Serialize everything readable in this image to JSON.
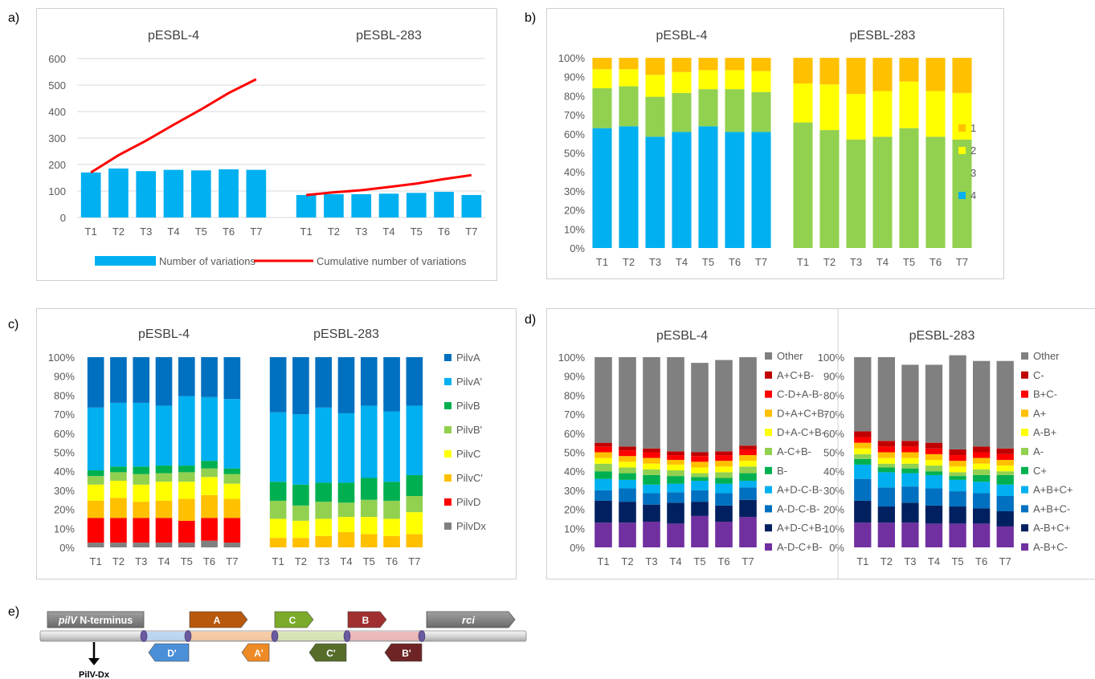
{
  "panel_labels": [
    "a)",
    "b)",
    "c)",
    "d)",
    "e)"
  ],
  "chart_data": [
    {
      "panel": "a)",
      "type": "bar",
      "groups": [
        "pESBL-4",
        "pESBL-283"
      ],
      "categories": [
        "T1",
        "T2",
        "T3",
        "T4",
        "T5",
        "T6",
        "T7"
      ],
      "ylim": [
        0,
        600
      ],
      "yticks": [
        "0",
        "100",
        "200",
        "300",
        "400",
        "500",
        "600"
      ],
      "grid": true,
      "legend_position": "bottom",
      "series": [
        {
          "name": "Number of variations",
          "kind": "bar",
          "color": "#00b0f0",
          "values": {
            "pESBL-4": [
              170,
              185,
              175,
              180,
              178,
              182,
              180
            ],
            "pESBL-283": [
              85,
              88,
              88,
              90,
              93,
              97,
              85
            ]
          }
        },
        {
          "name": "Cumulative number of variations",
          "kind": "line",
          "color": "#ff0000",
          "values": {
            "pESBL-4": [
              170,
              235,
              290,
              350,
              408,
              470,
              522
            ],
            "pESBL-283": [
              85,
              95,
              103,
              115,
              128,
              145,
              160
            ]
          }
        }
      ]
    },
    {
      "panel": "b)",
      "type": "bar",
      "stacked": "percent",
      "groups": [
        "pESBL-4",
        "pESBL-283"
      ],
      "categories": [
        "T1",
        "T2",
        "T3",
        "T4",
        "T5",
        "T6",
        "T7"
      ],
      "yticks": [
        "0%",
        "10%",
        "20%",
        "30%",
        "40%",
        "50%",
        "60%",
        "70%",
        "80%",
        "90%",
        "100%"
      ],
      "legend_position": "right",
      "series": [
        {
          "name": "4",
          "color": "#00b0f0",
          "values": {
            "pESBL-4": [
              63,
              64,
              58.5,
              61,
              64,
              61,
              61
            ],
            "pESBL-283": [
              0,
              0,
              0,
              0,
              0,
              0,
              0
            ]
          }
        },
        {
          "name": "3",
          "color": "#92d050",
          "values": {
            "pESBL-4": [
              21,
              21,
              21,
              20.5,
              19.5,
              22.5,
              21
            ],
            "pESBL-283": [
              66,
              62,
              57,
              58.5,
              63,
              58.5,
              57
            ]
          }
        },
        {
          "name": "2",
          "color": "#ffff00",
          "values": {
            "pESBL-4": [
              10,
              9,
              11.5,
              11,
              10,
              10,
              11
            ],
            "pESBL-283": [
              20.5,
              24,
              24,
              24,
              24.5,
              24,
              24.5
            ]
          }
        },
        {
          "name": "1",
          "color": "#ffc000",
          "values": {
            "pESBL-4": [
              6,
              6,
              9,
              7.5,
              6.5,
              6.5,
              7
            ],
            "pESBL-283": [
              13.5,
              14,
              19,
              17.5,
              12.5,
              17.5,
              18.5
            ]
          }
        }
      ]
    },
    {
      "panel": "c)",
      "type": "bar",
      "stacked": "percent",
      "groups": [
        "pESBL-4",
        "pESBL-283"
      ],
      "categories": [
        "T1",
        "T2",
        "T3",
        "T4",
        "T5",
        "T6",
        "T7"
      ],
      "yticks": [
        "0%",
        "10%",
        "20%",
        "30%",
        "40%",
        "50%",
        "60%",
        "70%",
        "80%",
        "90%",
        "100%"
      ],
      "legend_position": "right",
      "series": [
        {
          "name": "PilvDx",
          "color": "#808080",
          "values": {
            "pESBL-4": [
              2.5,
              2.5,
              2.5,
              2.5,
              2.5,
              3.5,
              2.5
            ],
            "pESBL-283": [
              0,
              0,
              0,
              0,
              0,
              0,
              0
            ]
          }
        },
        {
          "name": "PilvD",
          "color": "#ff0000",
          "values": {
            "pESBL-4": [
              13,
              13,
              13,
              13,
              11.5,
              12,
              13
            ],
            "pESBL-283": [
              0,
              0,
              0,
              0,
              0,
              0,
              0
            ]
          }
        },
        {
          "name": "PilvC'",
          "color": "#ffc000",
          "values": {
            "pESBL-4": [
              9,
              10.5,
              8.5,
              9,
              11.5,
              12,
              10
            ],
            "pESBL-283": [
              5,
              5,
              6,
              8,
              7,
              6,
              7
            ]
          }
        },
        {
          "name": "PilvC",
          "color": "#ffff00",
          "values": {
            "pESBL-4": [
              8.5,
              9,
              9,
              10,
              9,
              9.5,
              8
            ],
            "pESBL-283": [
              10,
              9,
              9,
              8,
              9,
              9,
              11.5
            ]
          }
        },
        {
          "name": "PilvB'",
          "color": "#92d050",
          "values": {
            "pESBL-4": [
              4.5,
              4.5,
              5.5,
              4.5,
              5,
              4.5,
              5
            ],
            "pESBL-283": [
              9.5,
              8,
              9,
              7.5,
              9,
              9.5,
              8.5
            ]
          }
        },
        {
          "name": "PilvB",
          "color": "#00b050",
          "values": {
            "pESBL-4": [
              3,
              3,
              4,
              4,
              3.5,
              4,
              3
            ],
            "pESBL-283": [
              10,
              11,
              10,
              10.5,
              11.5,
              10,
              11
            ]
          }
        },
        {
          "name": "PilvA'",
          "color": "#00b0f0",
          "values": {
            "pESBL-4": [
              33,
              33.5,
              33.5,
              31.5,
              36.5,
              33.5,
              36.5
            ],
            "pESBL-283": [
              36.5,
              37,
              39.5,
              36.5,
              38,
              37,
              36.5
            ]
          }
        },
        {
          "name": "PilvA",
          "color": "#0070c0",
          "values": {
            "pESBL-4": [
              26.5,
              24,
              24,
              25.5,
              20.5,
              21,
              22
            ],
            "pESBL-283": [
              29,
              30,
              26.5,
              29.5,
              25.5,
              28.5,
              25.5
            ]
          }
        }
      ]
    },
    {
      "panel": "d)",
      "type": "bar",
      "stacked": "percent",
      "charts": [
        {
          "title": "pESBL-4",
          "categories": [
            "T1",
            "T2",
            "T3",
            "T4",
            "T5",
            "T6",
            "T7"
          ],
          "yticks": [
            "0%",
            "10%",
            "20%",
            "30%",
            "40%",
            "50%",
            "60%",
            "70%",
            "80%",
            "90%",
            "100%"
          ],
          "legend_position": "right",
          "series": [
            {
              "name": "A-D-C+B-",
              "color": "#7030a0",
              "values": [
                13,
                13,
                13.5,
                12.5,
                16.5,
                13.5,
                16
              ]
            },
            {
              "name": "A+D-C+B-",
              "color": "#002060",
              "values": [
                11.5,
                11,
                9,
                11,
                7.5,
                8.5,
                9
              ]
            },
            {
              "name": "A-D-C-B-",
              "color": "#0070c0",
              "values": [
                5.5,
                7,
                6,
                5.5,
                6,
                6.5,
                6.5
              ]
            },
            {
              "name": "A+D-C-B-",
              "color": "#00b0f0",
              "values": [
                6,
                4.5,
                4.5,
                4.5,
                5,
                5,
                3.5
              ]
            },
            {
              "name": "B-",
              "color": "#00b050",
              "values": [
                4,
                3.5,
                5,
                4,
                2,
                3,
                4
              ]
            },
            {
              "name": "A-C+B-",
              "color": "#92d050",
              "values": [
                4,
                3,
                3,
                3,
                2,
                3,
                3.5
              ]
            },
            {
              "name": "D+A-C+B-",
              "color": "#ffff00",
              "values": [
                3,
                3,
                3,
                3,
                3,
                3,
                3
              ]
            },
            {
              "name": "D+A+C+B-",
              "color": "#ffc000",
              "values": [
                3,
                3,
                3,
                2.5,
                3,
                3,
                3
              ]
            },
            {
              "name": "C-D+A-B-",
              "color": "#ff0000",
              "values": [
                3,
                3,
                3,
                2.5,
                3,
                3,
                3
              ]
            },
            {
              "name": "A+C+B-",
              "color": "#c00000",
              "values": [
                2,
                2,
                2,
                2,
                2,
                2,
                2
              ]
            },
            {
              "name": "Other",
              "color": "#808080",
              "values": [
                45,
                47,
                48,
                49.5,
                47,
                48,
                46.5
              ]
            }
          ]
        },
        {
          "title": "pESBL-283",
          "categories": [
            "T1",
            "T2",
            "T3",
            "T4",
            "T5",
            "T6",
            "T7"
          ],
          "yticks": [
            "0%",
            "10%",
            "20%",
            "30%",
            "40%",
            "50%",
            "60%",
            "70%",
            "80%",
            "90%",
            "100%"
          ],
          "legend_position": "right",
          "series": [
            {
              "name": "A-B+C-",
              "color": "#7030a0",
              "values": [
                13,
                13,
                13,
                12.5,
                12.5,
                12.5,
                11
              ]
            },
            {
              "name": "A-B+C+",
              "color": "#002060",
              "values": [
                11.5,
                8.5,
                10.5,
                9.5,
                9,
                8,
                8
              ]
            },
            {
              "name": "A+B+C-",
              "color": "#0070c0",
              "values": [
                11.5,
                10,
                8.5,
                9,
                8,
                8,
                8
              ]
            },
            {
              "name": "A+B+C+",
              "color": "#00b0f0",
              "values": [
                7.5,
                8,
                7,
                7,
                6,
                6,
                6
              ]
            },
            {
              "name": "C+",
              "color": "#00b050",
              "values": [
                3,
                2.5,
                2.5,
                2,
                2,
                3.5,
                5
              ]
            },
            {
              "name": "A-",
              "color": "#92d050",
              "values": [
                2.5,
                2,
                2.5,
                3,
                2,
                3,
                2
              ]
            },
            {
              "name": "A-B+",
              "color": "#ffff00",
              "values": [
                3,
                3,
                3,
                3,
                3,
                3,
                3
              ]
            },
            {
              "name": "A+",
              "color": "#ffc000",
              "values": [
                3,
                3,
                3,
                3,
                3,
                3,
                3
              ]
            },
            {
              "name": "B+C-",
              "color": "#ff0000",
              "values": [
                3,
                3,
                3,
                3,
                3,
                3,
                3
              ]
            },
            {
              "name": "C-",
              "color": "#c00000",
              "values": [
                3,
                3,
                3,
                3,
                3,
                3,
                3
              ]
            },
            {
              "name": "Other",
              "color": "#808080",
              "values": [
                39,
                44,
                40,
                41,
                49.5,
                45,
                46
              ]
            }
          ]
        }
      ]
    }
  ],
  "diagram": {
    "pilv_prefix": "pilV",
    "pilv_rest": " N-terminus",
    "rci": "rci",
    "pilv_dx": "PilV-Dx",
    "segments_top": [
      {
        "label": "A",
        "color": "#b8580c"
      },
      {
        "label": "C",
        "color": "#7caa2a"
      },
      {
        "label": "B",
        "color": "#a03030"
      }
    ],
    "segments_bottom": [
      {
        "label": "D'",
        "color": "#4a8fd8"
      },
      {
        "label": "A'",
        "color": "#ee8a26"
      },
      {
        "label": "C'",
        "color": "#566d2a"
      },
      {
        "label": "B'",
        "color": "#6e2424"
      }
    ]
  }
}
